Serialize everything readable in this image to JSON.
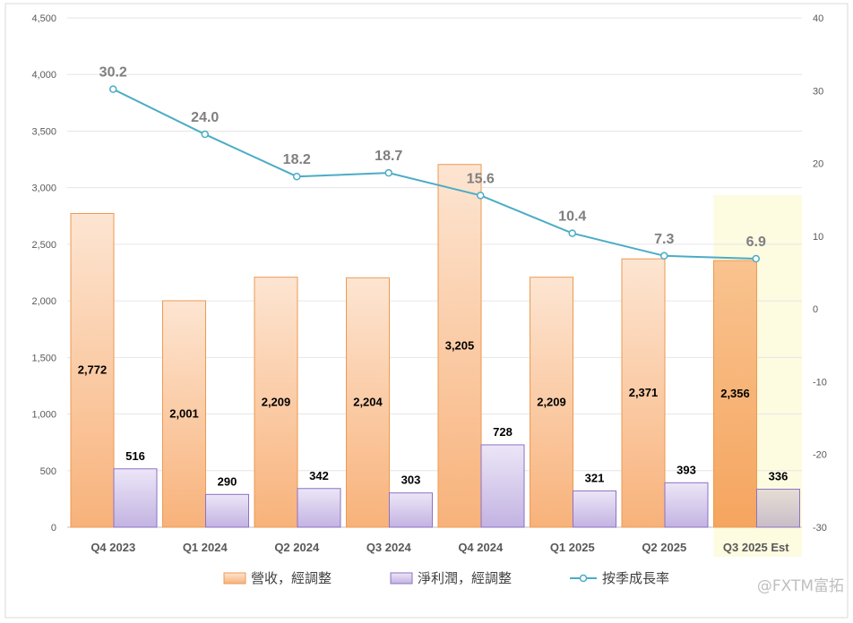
{
  "chart_data": {
    "type": "bar",
    "categories": [
      "Q4 2023",
      "Q1 2024",
      "Q2 2024",
      "Q3 2024",
      "Q4 2024",
      "Q1 2025",
      "Q2 2025",
      "Q3 2025 Est"
    ],
    "series": [
      {
        "name": "營收，經調整",
        "kind": "bar",
        "axis": "left",
        "color": "#f4a460",
        "values": [
          2772,
          2001,
          2209,
          2204,
          3205,
          2209,
          2371,
          2356
        ]
      },
      {
        "name": "淨利潤，經調整",
        "kind": "bar",
        "axis": "left",
        "color": "#b4a0d8",
        "values": [
          516,
          290,
          342,
          303,
          728,
          321,
          393,
          336
        ]
      },
      {
        "name": "按季成長率",
        "kind": "line",
        "axis": "right",
        "color": "#4bacc6",
        "values": [
          30.2,
          24.0,
          18.2,
          18.7,
          15.6,
          10.4,
          7.3,
          6.9
        ]
      }
    ],
    "left_axis": {
      "min": 0,
      "max": 4500,
      "step": 500
    },
    "right_axis": {
      "min": -30,
      "max": 40,
      "step": 10
    },
    "highlight_category": "Q3 2025 Est",
    "grid": true,
    "legend_position": "bottom"
  },
  "watermark": "@FXTM富拓"
}
